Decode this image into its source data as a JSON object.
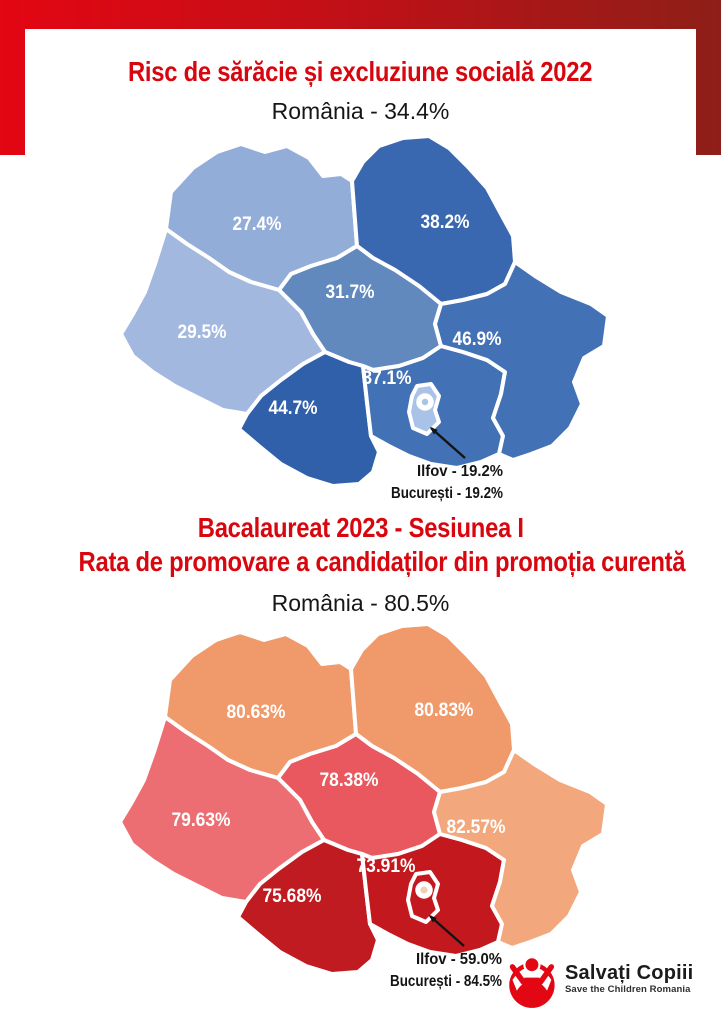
{
  "frame": {
    "gradient_left_color": "#e30613",
    "gradient_right_color": "#8e1f18"
  },
  "section1": {
    "title": "Risc de sărăcie și excluziune socială 2022",
    "subtitle": "România - 34.4%",
    "title_color": "#d8070f",
    "map": {
      "regions": [
        {
          "key": "north-west",
          "value": "27.4%",
          "color": "#93ADD9"
        },
        {
          "key": "north-east",
          "value": "38.2%",
          "color": "#3A68B0"
        },
        {
          "key": "center",
          "value": "31.7%",
          "color": "#6189BE"
        },
        {
          "key": "west",
          "value": "29.5%",
          "color": "#A2B8DF"
        },
        {
          "key": "south-west",
          "value": "44.7%",
          "color": "#3060AA"
        },
        {
          "key": "south",
          "value": "37.1%",
          "color": "#4271B5"
        },
        {
          "key": "south-east",
          "value": "46.9%",
          "color": "#4271B5"
        },
        {
          "key": "bucharest-ilfov",
          "value": "",
          "color": "#A9C3E8"
        }
      ],
      "ring_center_color": "#A9C3E8",
      "annotation_lines": [
        "Ilfov - 19.2%",
        "București - 19.2%"
      ]
    }
  },
  "section2": {
    "title_line1": "Bacalaureat 2023 - Sesiunea I",
    "title_line2": "Rata de promovare a candidaților din promoția curentă",
    "subtitle": "România - 80.5%",
    "title_color": "#d8070f",
    "map": {
      "regions": [
        {
          "key": "north-west",
          "value": "80.63%",
          "color": "#F0996B"
        },
        {
          "key": "north-east",
          "value": "80.83%",
          "color": "#F0996B"
        },
        {
          "key": "center",
          "value": "78.38%",
          "color": "#E9575F"
        },
        {
          "key": "west",
          "value": "79.63%",
          "color": "#EC6E72"
        },
        {
          "key": "south-west",
          "value": "75.68%",
          "color": "#C01B21"
        },
        {
          "key": "south",
          "value": "73.91%",
          "color": "#C3191E"
        },
        {
          "key": "south-east",
          "value": "82.57%",
          "color": "#F2A87C"
        },
        {
          "key": "bucharest-ilfov",
          "value": "",
          "color": "#C3191E"
        }
      ],
      "ring_center_color": "#F2CFAE",
      "annotation_lines": [
        "Ilfov - 59.0%",
        "București - 84.5%"
      ]
    }
  },
  "footer": {
    "logo_title": "Salvați Copiii",
    "logo_subtitle": "Save the Children Romania",
    "logo_color": "#E30613"
  }
}
